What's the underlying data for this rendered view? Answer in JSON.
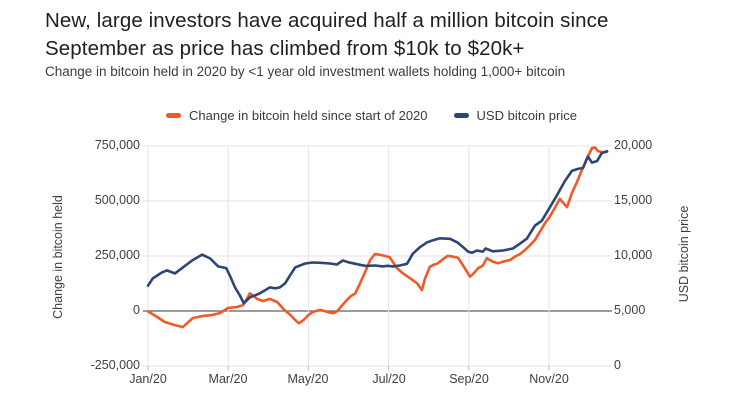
{
  "chart_data": {
    "type": "line",
    "title": "New, large investors have acquired half a million bitcoin since September as price has climbed from $10k to $20k+",
    "subtitle": "Change in bitcoin held in 2020 by <1 year old investment wallets holding 1,000+ bitcoin",
    "legend_position": "top-center",
    "grid": true,
    "x_axis": {
      "ticks": [
        "Jan/20",
        "Mar/20",
        "May/20",
        "Jul/20",
        "Sep/20",
        "Nov/20"
      ],
      "tick_months": [
        0,
        2,
        4,
        6,
        8,
        10
      ],
      "range_months": [
        0,
        11.5
      ]
    },
    "left_axis": {
      "label": "Change in bitcoin held",
      "min": -250000,
      "max": 750000,
      "ticks": [
        {
          "label": "750,000",
          "value": 750000
        },
        {
          "label": "500,000",
          "value": 500000
        },
        {
          "label": "250,000",
          "value": 250000
        },
        {
          "label": "0",
          "value": 0
        },
        {
          "label": "-250,000",
          "value": -250000
        }
      ]
    },
    "right_axis": {
      "label": "USD bitcoin price",
      "min": 0,
      "max": 20000,
      "ticks": [
        {
          "label": "20,000",
          "value": 20000
        },
        {
          "label": "15,000",
          "value": 15000
        },
        {
          "label": "10,000",
          "value": 10000
        },
        {
          "label": "5,000",
          "value": 5000
        },
        {
          "label": "0",
          "value": 0
        }
      ]
    },
    "colors": {
      "change_held": "#F05A28",
      "usd_price": "#2E4577",
      "gridline": "#e3e3e3",
      "zero_line": "#5f5f5f"
    },
    "series": [
      {
        "name": "Change in bitcoin held since start of 2020",
        "axis": "left",
        "color": "#F05A28",
        "points": [
          [
            0,
            -2000
          ],
          [
            0.21,
            -25000
          ],
          [
            0.42,
            -50000
          ],
          [
            0.67,
            -64000
          ],
          [
            0.87,
            -73000
          ],
          [
            1.12,
            -32000
          ],
          [
            1.35,
            -23000
          ],
          [
            1.6,
            -18000
          ],
          [
            1.8,
            -9000
          ],
          [
            2.0,
            14000
          ],
          [
            2.22,
            18000
          ],
          [
            2.37,
            27000
          ],
          [
            2.54,
            80000
          ],
          [
            2.72,
            55000
          ],
          [
            2.87,
            45000
          ],
          [
            3.04,
            55000
          ],
          [
            3.22,
            41000
          ],
          [
            3.4,
            5000
          ],
          [
            3.55,
            -18000
          ],
          [
            3.67,
            -41000
          ],
          [
            3.76,
            -56000
          ],
          [
            3.88,
            -41000
          ],
          [
            4.0,
            -18000
          ],
          [
            4.12,
            -3000
          ],
          [
            4.3,
            5000
          ],
          [
            4.5,
            -6000
          ],
          [
            4.62,
            -10000
          ],
          [
            4.72,
            0
          ],
          [
            4.92,
            42000
          ],
          [
            5.04,
            65000
          ],
          [
            5.17,
            80000
          ],
          [
            5.29,
            126000
          ],
          [
            5.42,
            179000
          ],
          [
            5.54,
            232000
          ],
          [
            5.66,
            259000
          ],
          [
            5.79,
            255000
          ],
          [
            5.91,
            250000
          ],
          [
            6.03,
            244000
          ],
          [
            6.21,
            194000
          ],
          [
            6.36,
            171000
          ],
          [
            6.53,
            149000
          ],
          [
            6.71,
            126000
          ],
          [
            6.83,
            95000
          ],
          [
            6.91,
            149000
          ],
          [
            7.03,
            201000
          ],
          [
            7.11,
            209000
          ],
          [
            7.23,
            217000
          ],
          [
            7.36,
            236000
          ],
          [
            7.48,
            251000
          ],
          [
            7.61,
            247000
          ],
          [
            7.73,
            242000
          ],
          [
            7.85,
            209000
          ],
          [
            7.95,
            179000
          ],
          [
            8.03,
            156000
          ],
          [
            8.1,
            167000
          ],
          [
            8.23,
            194000
          ],
          [
            8.35,
            206000
          ],
          [
            8.45,
            240000
          ],
          [
            8.6,
            224000
          ],
          [
            8.73,
            217000
          ],
          [
            8.85,
            224000
          ],
          [
            9.03,
            232000
          ],
          [
            9.15,
            247000
          ],
          [
            9.28,
            259000
          ],
          [
            9.4,
            277000
          ],
          [
            9.53,
            300000
          ],
          [
            9.65,
            323000
          ],
          [
            9.9,
            399000
          ],
          [
            10.02,
            429000
          ],
          [
            10.15,
            470000
          ],
          [
            10.27,
            510000
          ],
          [
            10.45,
            472000
          ],
          [
            10.57,
            536000
          ],
          [
            10.7,
            588000
          ],
          [
            10.82,
            641000
          ],
          [
            10.95,
            694000
          ],
          [
            11.07,
            740000
          ],
          [
            11.15,
            743000
          ],
          [
            11.22,
            727000
          ],
          [
            11.35,
            721000
          ],
          [
            11.45,
            727000
          ]
        ]
      },
      {
        "name": "USD bitcoin price",
        "axis": "right",
        "color": "#2E4577",
        "points": [
          [
            0,
            7300
          ],
          [
            0.12,
            7960
          ],
          [
            0.35,
            8510
          ],
          [
            0.47,
            8690
          ],
          [
            0.67,
            8420
          ],
          [
            0.87,
            8960
          ],
          [
            1.1,
            9590
          ],
          [
            1.35,
            10130
          ],
          [
            1.55,
            9770
          ],
          [
            1.75,
            9050
          ],
          [
            1.95,
            8900
          ],
          [
            2.04,
            8240
          ],
          [
            2.17,
            7150
          ],
          [
            2.29,
            6430
          ],
          [
            2.39,
            5700
          ],
          [
            2.54,
            6250
          ],
          [
            2.67,
            6430
          ],
          [
            2.79,
            6610
          ],
          [
            2.92,
            6880
          ],
          [
            3.04,
            7150
          ],
          [
            3.17,
            7060
          ],
          [
            3.29,
            7150
          ],
          [
            3.42,
            7510
          ],
          [
            3.54,
            8240
          ],
          [
            3.67,
            8960
          ],
          [
            3.79,
            9140
          ],
          [
            3.92,
            9320
          ],
          [
            4.1,
            9410
          ],
          [
            4.3,
            9380
          ],
          [
            4.54,
            9320
          ],
          [
            4.71,
            9230
          ],
          [
            4.86,
            9590
          ],
          [
            4.99,
            9440
          ],
          [
            5.17,
            9290
          ],
          [
            5.42,
            9100
          ],
          [
            5.66,
            9140
          ],
          [
            5.85,
            9050
          ],
          [
            5.97,
            9110
          ],
          [
            6.11,
            9050
          ],
          [
            6.28,
            9140
          ],
          [
            6.46,
            9290
          ],
          [
            6.6,
            10200
          ],
          [
            6.78,
            10800
          ],
          [
            6.96,
            11250
          ],
          [
            7.1,
            11420
          ],
          [
            7.28,
            11610
          ],
          [
            7.53,
            11560
          ],
          [
            7.71,
            11250
          ],
          [
            7.86,
            10800
          ],
          [
            7.98,
            10400
          ],
          [
            8.08,
            10290
          ],
          [
            8.2,
            10500
          ],
          [
            8.35,
            10400
          ],
          [
            8.42,
            10680
          ],
          [
            8.6,
            10430
          ],
          [
            8.85,
            10500
          ],
          [
            9.1,
            10680
          ],
          [
            9.28,
            11130
          ],
          [
            9.45,
            11580
          ],
          [
            9.65,
            12760
          ],
          [
            9.82,
            13210
          ],
          [
            10.02,
            14420
          ],
          [
            10.22,
            15650
          ],
          [
            10.4,
            16830
          ],
          [
            10.57,
            17740
          ],
          [
            10.72,
            17920
          ],
          [
            10.85,
            18010
          ],
          [
            10.97,
            19050
          ],
          [
            11.07,
            18490
          ],
          [
            11.2,
            18640
          ],
          [
            11.32,
            19370
          ],
          [
            11.45,
            19500
          ]
        ]
      }
    ]
  }
}
